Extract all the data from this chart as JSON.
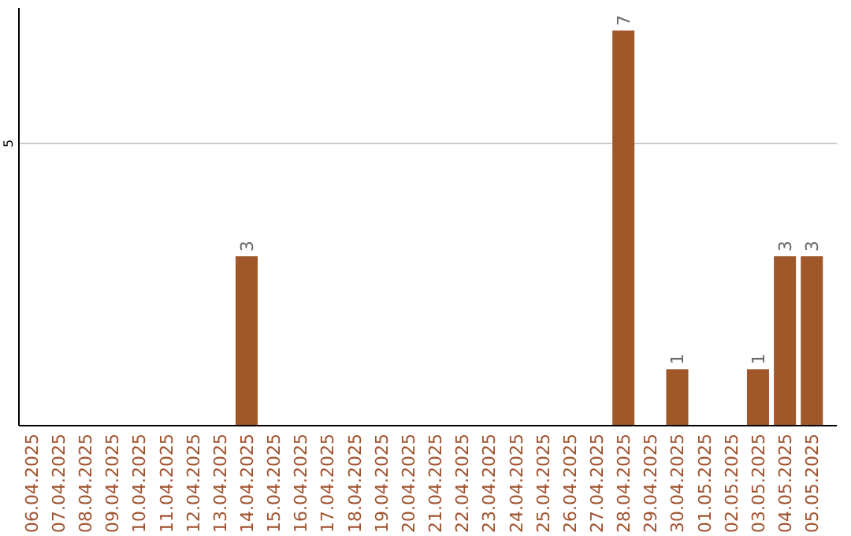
{
  "chart_data": {
    "type": "bar",
    "categories": [
      "06.04.2025",
      "07.04.2025",
      "08.04.2025",
      "09.04.2025",
      "10.04.2025",
      "11.04.2025",
      "12.04.2025",
      "13.04.2025",
      "14.04.2025",
      "15.04.2025",
      "16.04.2025",
      "17.04.2025",
      "18.04.2025",
      "19.04.2025",
      "20.04.2025",
      "21.04.2025",
      "22.04.2025",
      "23.04.2025",
      "24.04.2025",
      "25.04.2025",
      "26.04.2025",
      "27.04.2025",
      "28.04.2025",
      "29.04.2025",
      "30.04.2025",
      "01.05.2025",
      "02.05.2025",
      "03.05.2025",
      "04.05.2025",
      "05.05.2025"
    ],
    "values": [
      0,
      0,
      0,
      0,
      0,
      0,
      0,
      0,
      3,
      0,
      0,
      0,
      0,
      0,
      0,
      0,
      0,
      0,
      0,
      0,
      0,
      0,
      7,
      0,
      1,
      0,
      0,
      1,
      3,
      3
    ],
    "value_labels": [
      null,
      null,
      null,
      null,
      null,
      null,
      null,
      null,
      "3",
      null,
      null,
      null,
      null,
      null,
      null,
      null,
      null,
      null,
      null,
      null,
      null,
      null,
      "7",
      null,
      "1",
      null,
      null,
      "1",
      "3",
      "3"
    ],
    "color": "#a0572a",
    "ylim": [
      0,
      7.4
    ],
    "yticks": [
      5
    ],
    "grid": "y"
  }
}
